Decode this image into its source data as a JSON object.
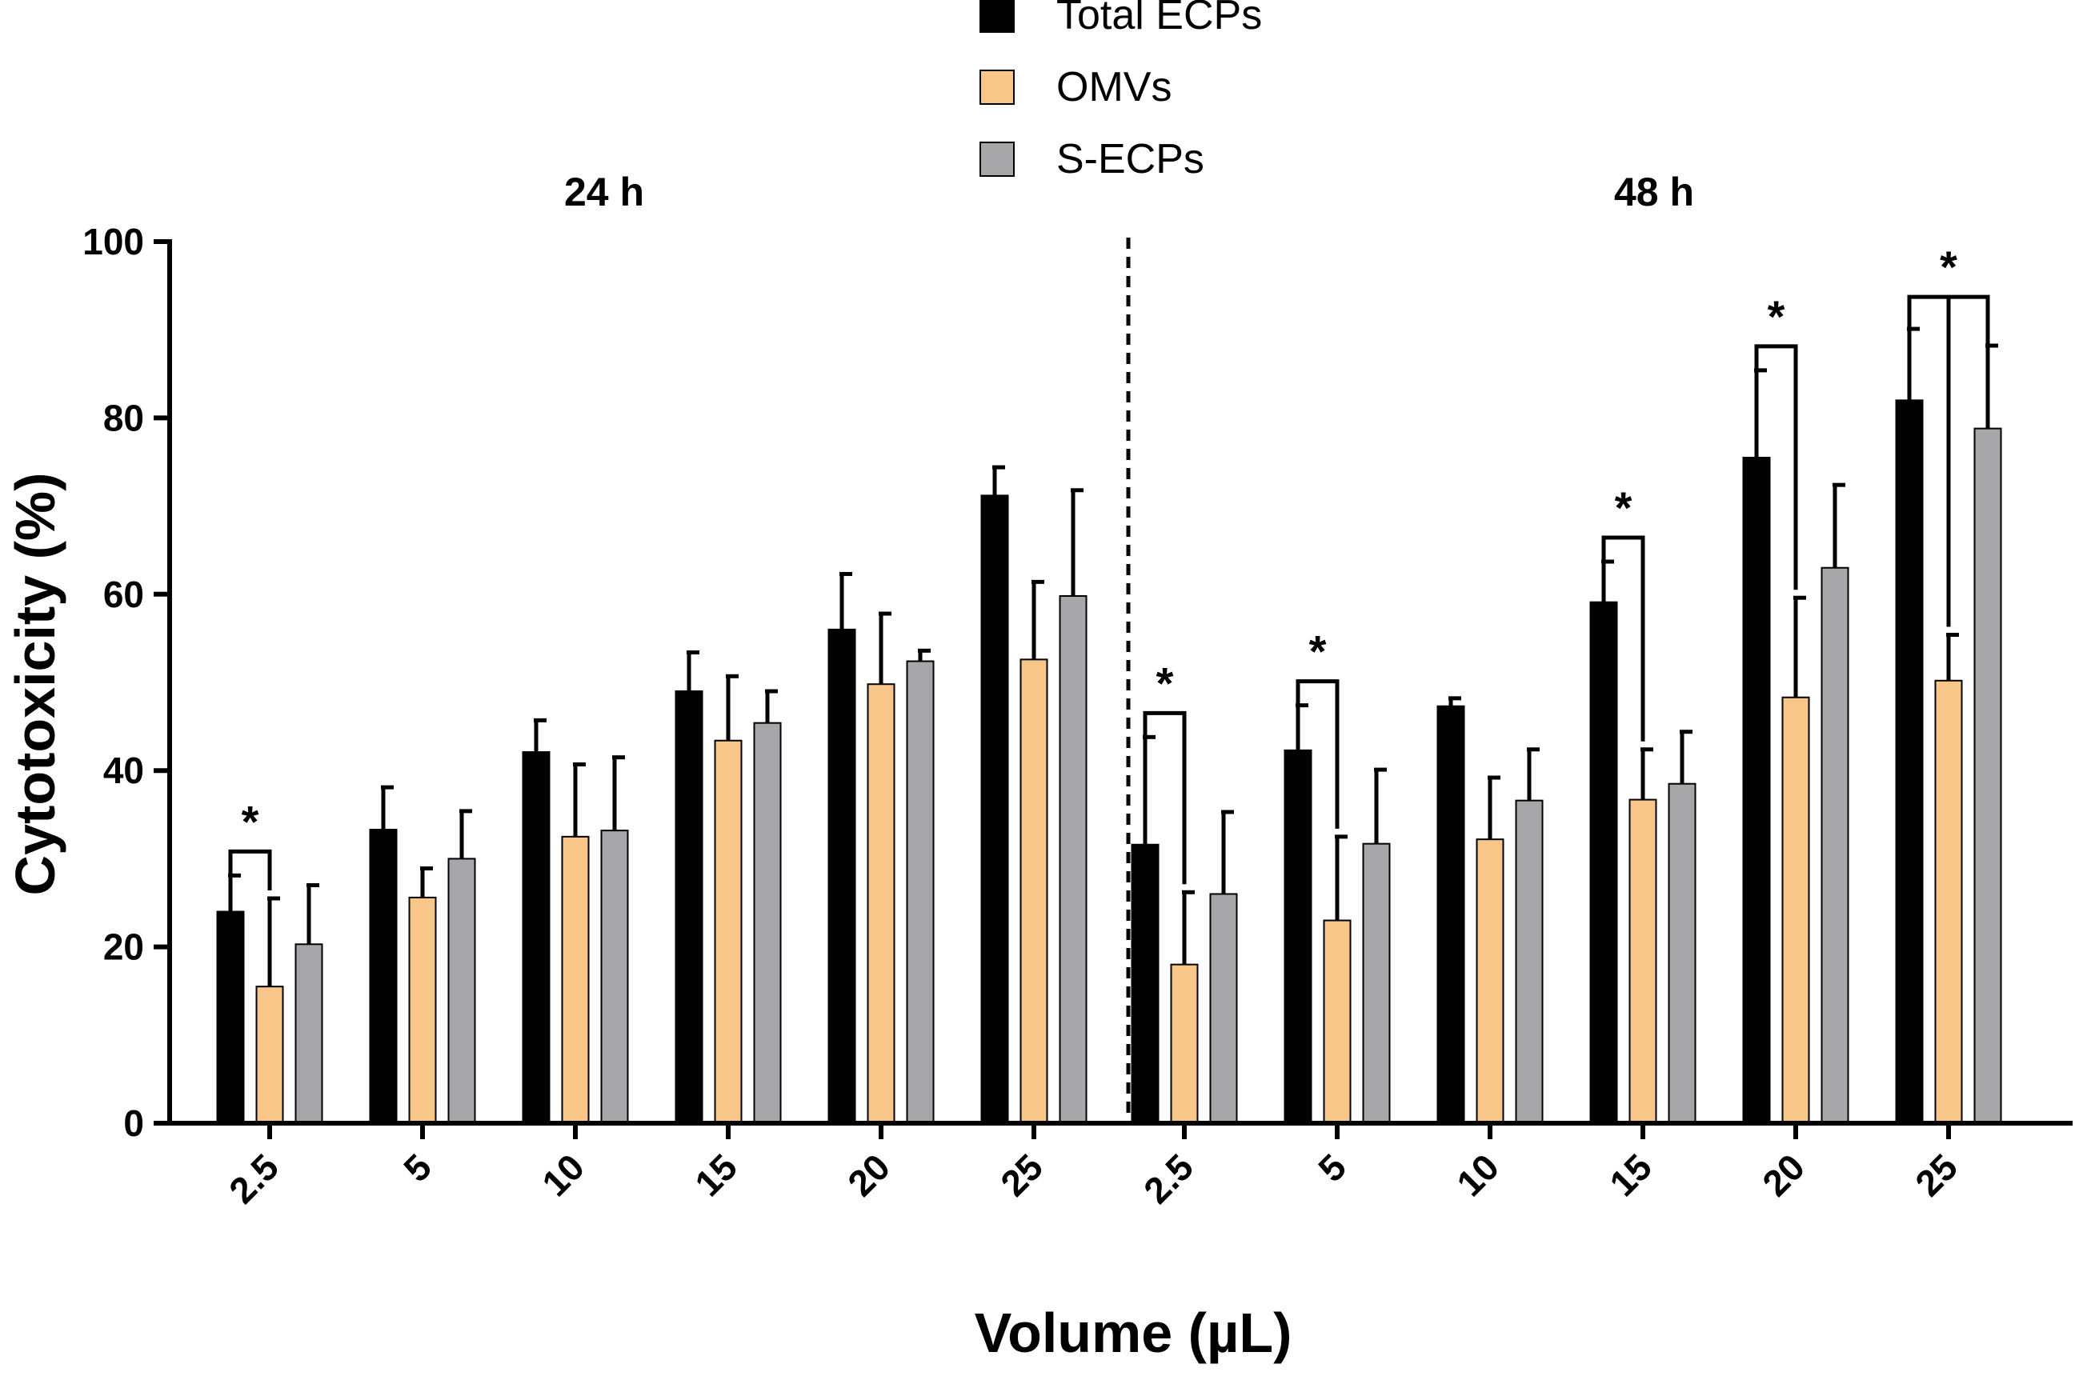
{
  "chart_data": {
    "type": "bar",
    "title": "",
    "xlabel": "Volume (µL)",
    "ylabel": "Cytotoxicity (%)",
    "ylim": [
      0,
      100
    ],
    "yticks": [
      0,
      20,
      40,
      60,
      80,
      100
    ],
    "groups": [
      {
        "label": "24 h",
        "categories": [
          "2.5",
          "5",
          "10",
          "15",
          "20",
          "25"
        ]
      },
      {
        "label": "48 h",
        "categories": [
          "2.5",
          "5",
          "10",
          "15",
          "20",
          "25"
        ]
      }
    ],
    "series": [
      {
        "name": "Total ECPs",
        "color": "#000000",
        "values": [
          24,
          33.3,
          42.1,
          49.0,
          56.0,
          71.2,
          31.6,
          42.3,
          47.3,
          59.1,
          75.5,
          82.0
        ],
        "errors": [
          4.1,
          4.8,
          3.6,
          4.4,
          6.3,
          3.2,
          12.2,
          5.1,
          0.9,
          4.6,
          9.9,
          8.1
        ]
      },
      {
        "name": "OMVs",
        "color": "#F9C68A",
        "values": [
          15.5,
          25.6,
          32.5,
          43.4,
          49.8,
          52.6,
          18.0,
          23.0,
          32.2,
          36.7,
          48.3,
          50.2
        ],
        "errors": [
          10.0,
          3.3,
          8.2,
          7.3,
          8.0,
          8.8,
          8.2,
          9.5,
          7.0,
          5.7,
          11.3,
          5.2
        ]
      },
      {
        "name": "S-ECPs",
        "color": "#A7A7A9",
        "values": [
          20.3,
          30.0,
          33.2,
          45.4,
          52.4,
          59.8,
          26.0,
          31.7,
          36.6,
          38.5,
          63.0,
          78.8
        ],
        "errors": [
          6.7,
          5.4,
          8.3,
          3.6,
          1.2,
          12.0,
          9.3,
          8.4,
          5.8,
          5.9,
          9.4,
          9.4
        ]
      }
    ],
    "significance": [
      {
        "index": 0,
        "label": "*",
        "kind": "pair",
        "from": "Total ECPs",
        "to": "OMVs"
      },
      {
        "index": 6,
        "label": "*",
        "kind": "pair",
        "from": "Total ECPs",
        "to": "OMVs"
      },
      {
        "index": 7,
        "label": "*",
        "kind": "pair",
        "from": "Total ECPs",
        "to": "OMVs"
      },
      {
        "index": 9,
        "label": "*",
        "kind": "pair",
        "from": "Total ECPs",
        "to": "OMVs"
      },
      {
        "index": 10,
        "label": "*",
        "kind": "pair",
        "from": "Total ECPs",
        "to": "OMVs"
      },
      {
        "index": 11,
        "label": "*",
        "kind": "triple",
        "from": "Total ECPs",
        "to": "S-ECPs"
      }
    ],
    "legend": {
      "position": "top-center",
      "entries": [
        "Total ECPs",
        "OMVs",
        "S-ECPs"
      ]
    },
    "divider": "dashed line between 24 h and 48 h groups"
  }
}
